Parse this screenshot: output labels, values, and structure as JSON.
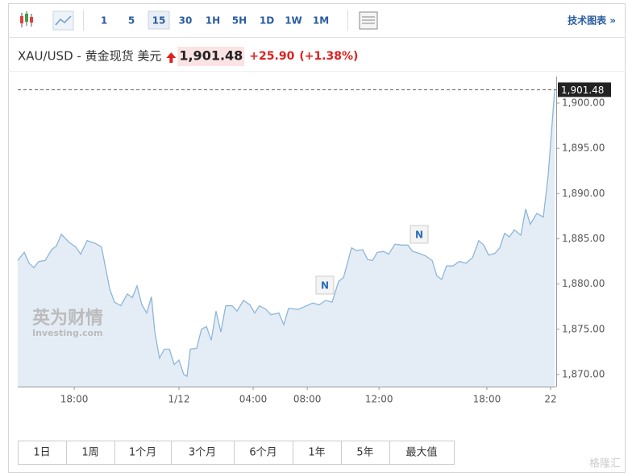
{
  "toolbar": {
    "intervals": [
      "1",
      "5",
      "15",
      "30",
      "1H",
      "5H",
      "1D",
      "1W",
      "1M"
    ],
    "selected": "15",
    "tech_chart": "技术图表 »"
  },
  "header": {
    "instrument": "XAU/USD - 黄金现货 美元",
    "price": "1,901.48",
    "change": "+25.90",
    "change_pct": "(+1.38%)"
  },
  "chart_data": {
    "type": "area",
    "color": "#8db6d8",
    "fill": "#e4edf6",
    "x": [
      -3,
      -2.62,
      -2.34,
      -2.06,
      -1.78,
      -1.4,
      -1.03,
      -0.75,
      -0.46,
      0,
      0.38,
      0.66,
      1.04,
      1.5,
      1.88,
      2.35,
      2.63,
      3.0,
      3.38,
      3.67,
      3.95,
      4.23,
      4.51,
      4.79,
      4.98,
      5.26,
      5.54,
      5.83,
      6.11,
      6.39,
      6.67,
      6.86,
      7.05,
      7.42,
      7.7,
      7.99,
      8.27,
      8.55,
      8.83,
      9.11,
      9.49,
      9.77,
      10.15,
      10.52,
      10.8,
      11.08,
      11.46,
      11.74,
      12.21,
      12.49,
      12.77,
      13.34,
      13.71,
      14.18,
      14.56,
      14.93,
      15.31,
      15.69,
      15.97,
      16.44,
      16.72,
      17.09,
      17.38,
      17.66,
      17.94,
      18.31,
      18.6,
      18.97,
      19.35,
      19.72,
      20.0,
      20.38,
      20.76,
      21.13,
      21.41,
      21.69,
      21.97,
      22.35,
      22.72,
      23.1,
      23.48,
      23.85,
      24.14,
      24.42,
      24.79,
      25.07,
      25.35,
      25.63,
      25.92,
      26.3,
      26.58,
      26.85,
      27.23,
      27.61,
      27.89,
      28.27
    ],
    "values": [
      1882.6,
      1883.5,
      1882.3,
      1881.8,
      1882.5,
      1882.6,
      1883.8,
      1884.2,
      1885.5,
      1884.6,
      1884.1,
      1883.3,
      1884.8,
      1884.5,
      1884.1,
      1879.5,
      1878.0,
      1877.6,
      1878.9,
      1878.5,
      1879.8,
      1877.7,
      1876.8,
      1878.6,
      1874.7,
      1871.8,
      1872.8,
      1872.8,
      1871.1,
      1871.6,
      1870.0,
      1869.8,
      1872.8,
      1872.9,
      1875.0,
      1875.3,
      1873.8,
      1877.0,
      1874.7,
      1877.6,
      1877.6,
      1877.0,
      1878.2,
      1877.7,
      1876.8,
      1877.6,
      1877.2,
      1876.6,
      1876.8,
      1875.5,
      1877.3,
      1877.2,
      1877.5,
      1877.9,
      1877.7,
      1878.2,
      1878.0,
      1880.3,
      1880.7,
      1884.0,
      1883.7,
      1883.8,
      1882.7,
      1882.6,
      1883.5,
      1883.6,
      1883.3,
      1884.4,
      1884.3,
      1884.3,
      1883.6,
      1883.4,
      1883.1,
      1882.6,
      1880.9,
      1880.5,
      1882.0,
      1882.0,
      1882.5,
      1882.3,
      1882.9,
      1884.8,
      1884.3,
      1883.2,
      1883.4,
      1884.0,
      1885.6,
      1885.2,
      1886.0,
      1885.4,
      1888.3,
      1886.6,
      1887.8,
      1887.4,
      1892.0,
      1901.5
    ],
    "xlim": [
      -3,
      28.36
    ],
    "ylim": [
      1868.66,
      1902.05
    ],
    "xticks": [
      {
        "value": 0.29,
        "label": "18:00"
      },
      {
        "value": 6.39,
        "label": "1/12"
      },
      {
        "value": 10.71,
        "label": "04:00"
      },
      {
        "value": 13.86,
        "label": "08:00"
      },
      {
        "value": 18.04,
        "label": "12:00"
      },
      {
        "value": 24.32,
        "label": "18:00"
      },
      {
        "value": 28.03,
        "label": "22"
      }
    ],
    "yticks": [
      {
        "value": 1870,
        "label": "1,870.00"
      },
      {
        "value": 1875,
        "label": "1,875.00"
      },
      {
        "value": 1880,
        "label": "1,880.00"
      },
      {
        "value": 1885,
        "label": "1,885.00"
      },
      {
        "value": 1890,
        "label": "1,890.00"
      },
      {
        "value": 1895,
        "label": "1,895.00"
      },
      {
        "value": 1900,
        "label": "1,900.00"
      }
    ],
    "last_price": {
      "value": 1901.48,
      "label": "1,901.48"
    },
    "annotations": [
      "N",
      "N"
    ]
  },
  "watermark": {
    "cn": "英为财情",
    "en": "Investing.com",
    "corner": "格隆汇"
  },
  "ranges": [
    "1日",
    "1周",
    "1个月",
    "3个月",
    "6个月",
    "1年",
    "5年",
    "最大值"
  ]
}
